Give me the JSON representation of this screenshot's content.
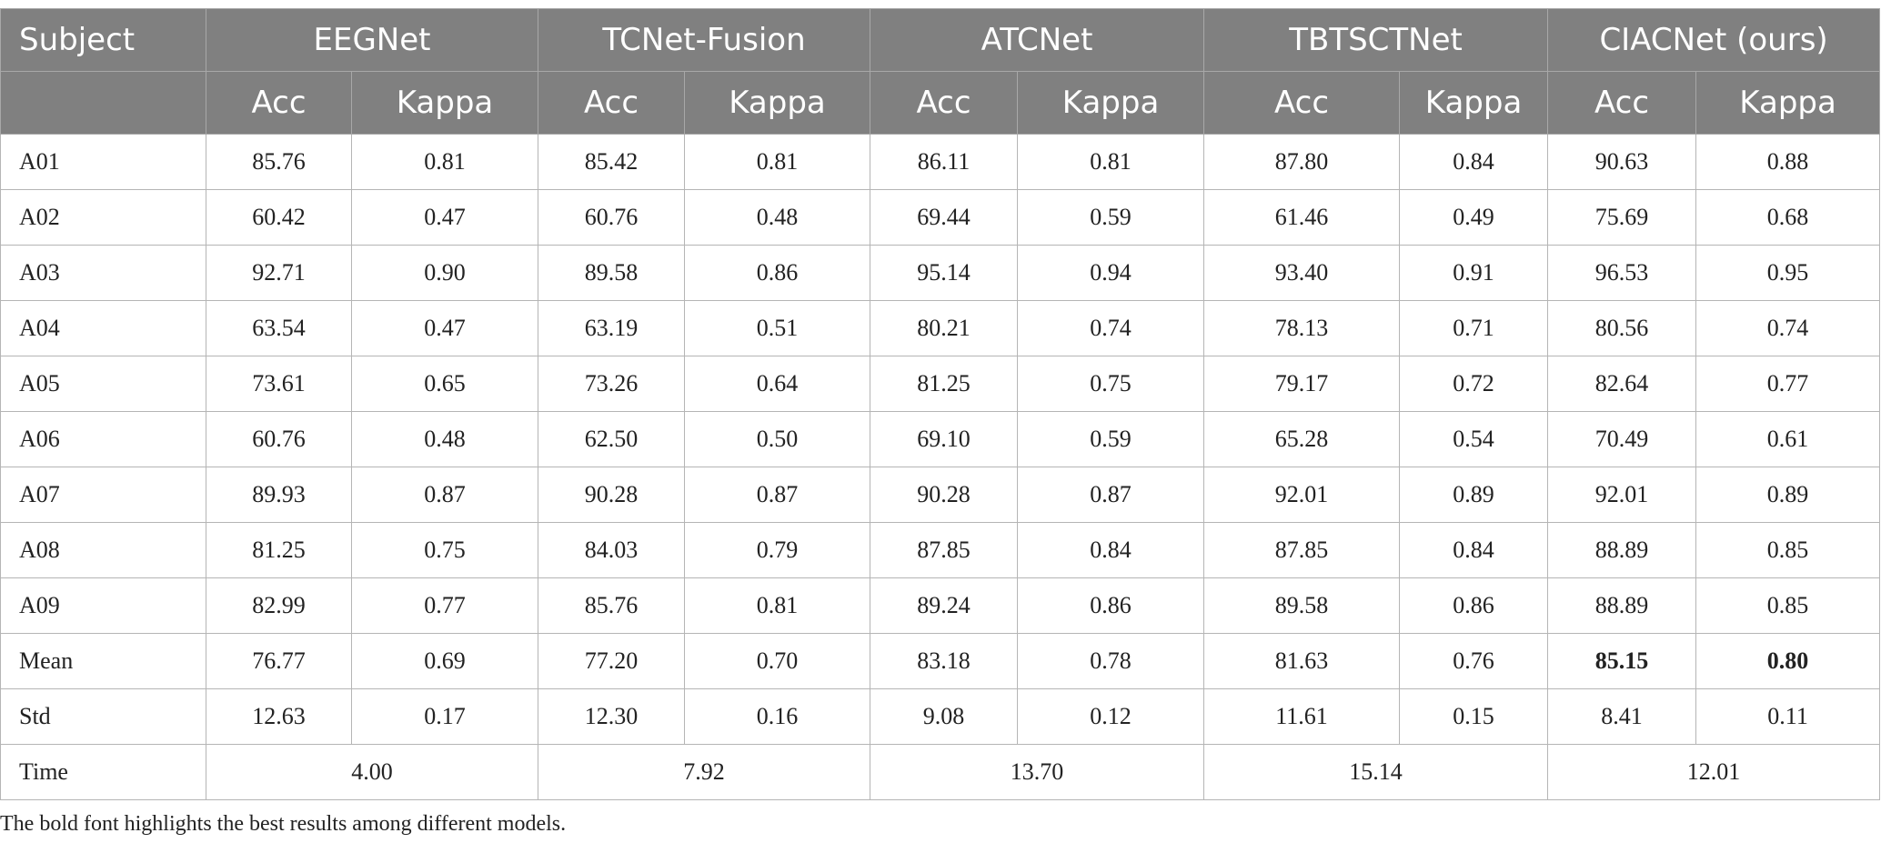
{
  "table": {
    "header": {
      "label": "Subject",
      "groups": [
        "EEGNet",
        "TCNet-Fusion",
        "ATCNet",
        "TBTSCTNet",
        "CIACNet (ours)"
      ]
    },
    "subheader": [
      "Acc",
      "Kappa"
    ],
    "rows": [
      [
        "A01",
        "85.76",
        "0.81",
        "85.42",
        "0.81",
        "86.11",
        "0.81",
        "87.80",
        "0.84",
        "90.63",
        "0.88"
      ],
      [
        "A02",
        "60.42",
        "0.47",
        "60.76",
        "0.48",
        "69.44",
        "0.59",
        "61.46",
        "0.49",
        "75.69",
        "0.68"
      ],
      [
        "A03",
        "92.71",
        "0.90",
        "89.58",
        "0.86",
        "95.14",
        "0.94",
        "93.40",
        "0.91",
        "96.53",
        "0.95"
      ],
      [
        "A04",
        "63.54",
        "0.47",
        "63.19",
        "0.51",
        "80.21",
        "0.74",
        "78.13",
        "0.71",
        "80.56",
        "0.74"
      ],
      [
        "A05",
        "73.61",
        "0.65",
        "73.26",
        "0.64",
        "81.25",
        "0.75",
        "79.17",
        "0.72",
        "82.64",
        "0.77"
      ],
      [
        "A06",
        "60.76",
        "0.48",
        "62.50",
        "0.50",
        "69.10",
        "0.59",
        "65.28",
        "0.54",
        "70.49",
        "0.61"
      ],
      [
        "A07",
        "89.93",
        "0.87",
        "90.28",
        "0.87",
        "90.28",
        "0.87",
        "92.01",
        "0.89",
        "92.01",
        "0.89"
      ],
      [
        "A08",
        "81.25",
        "0.75",
        "84.03",
        "0.79",
        "87.85",
        "0.84",
        "87.85",
        "0.84",
        "88.89",
        "0.85"
      ],
      [
        "A09",
        "82.99",
        "0.77",
        "85.76",
        "0.81",
        "89.24",
        "0.86",
        "89.58",
        "0.86",
        "88.89",
        "0.85"
      ],
      [
        "Mean",
        "76.77",
        "0.69",
        "77.20",
        "0.70",
        "83.18",
        "0.78",
        "81.63",
        "0.76",
        "85.15",
        "0.80"
      ],
      [
        "Std",
        "12.63",
        "0.17",
        "12.30",
        "0.16",
        "9.08",
        "0.12",
        "11.61",
        "0.15",
        "8.41",
        "0.11"
      ]
    ],
    "time": {
      "label": "Time",
      "values": [
        "4.00",
        "7.92",
        "13.70",
        "15.14",
        "12.01"
      ]
    },
    "footnote": "The bold font highlights the best results among different models."
  }
}
